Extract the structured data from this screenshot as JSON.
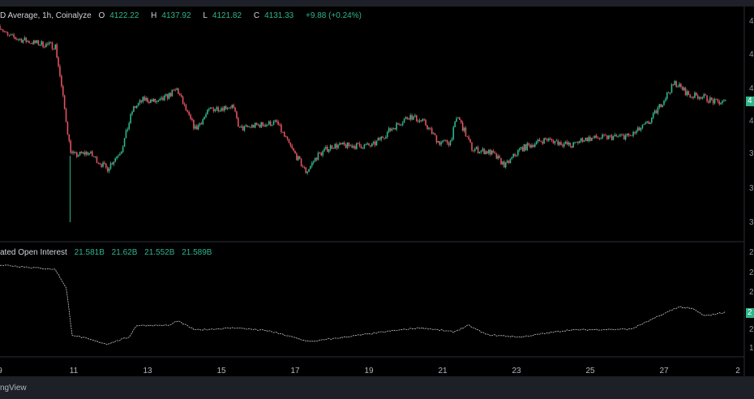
{
  "header": {
    "title": "D Average, 1h, Coinalyze",
    "open_label": "O",
    "open": "4122.22",
    "high_label": "H",
    "high": "4137.92",
    "low_label": "L",
    "low": "4121.82",
    "close_label": "C",
    "close": "4131.33",
    "change": "+9.88 (+0.24%)"
  },
  "oi_header": {
    "title": "ated Open Interest",
    "open": "21.581B",
    "high": "21.62B",
    "low": "21.552B",
    "close": "21.589B"
  },
  "footer": {
    "brand": "ngView"
  },
  "colors": {
    "up": "#2fb58c",
    "down": "#e0525e",
    "background": "#000000",
    "panel": "#1e2027"
  },
  "chart_data": [
    {
      "type": "candlestick",
      "xlabel": "",
      "ylabel": "",
      "x_tick_labels": [
        "9",
        "11",
        "13",
        "15",
        "17",
        "19",
        "21",
        "23",
        "25",
        "27",
        "2"
      ],
      "y_tick_labels": [
        "4",
        "4",
        "4",
        "4",
        "3",
        "3",
        "3"
      ],
      "last_value_badge": "4",
      "grid": false,
      "close_path": {
        "day": [
          9.0,
          9.2,
          9.9,
          10.5,
          10.6,
          10.9,
          11.0,
          11.4,
          11.9,
          12.3,
          12.6,
          12.9,
          13.3,
          13.8,
          14.1,
          14.3,
          14.7,
          15.3,
          15.5,
          15.9,
          16.5,
          16.8,
          17.3,
          17.6,
          18.0,
          19.1,
          19.6,
          20.1,
          20.5,
          20.9,
          21.2,
          21.4,
          21.8,
          22.3,
          22.7,
          23.1,
          23.8,
          24.5,
          24.8,
          26.1,
          26.6,
          27.0,
          27.3,
          27.7,
          28.0,
          28.4,
          28.7
        ],
        "price": [
          4245,
          4230,
          4220,
          4215,
          4180,
          4060,
          4050,
          4055,
          4030,
          4060,
          4120,
          4135,
          4130,
          4150,
          4110,
          4090,
          4120,
          4125,
          4090,
          4095,
          4100,
          4070,
          4025,
          4050,
          4065,
          4065,
          4090,
          4110,
          4100,
          4070,
          4070,
          4110,
          4060,
          4055,
          4035,
          4060,
          4075,
          4065,
          4075,
          4080,
          4100,
          4135,
          4160,
          4140,
          4140,
          4130,
          4131
        ]
      },
      "spike_low": {
        "day": 10.9,
        "price": 3950
      }
    },
    {
      "type": "line",
      "y_tick_labels": [
        "2",
        "2",
        "2",
        "2",
        "2",
        "1"
      ],
      "last_value_badge": "2",
      "series": {
        "day": [
          9.0,
          10.5,
          10.8,
          10.95,
          11.9,
          12.5,
          12.7,
          13.6,
          13.8,
          14.3,
          15.4,
          16.3,
          17.4,
          19.6,
          20.4,
          21.3,
          21.7,
          22.2,
          23.1,
          24.4,
          26.1,
          26.6,
          27.4,
          27.8,
          28.1,
          28.7
        ],
        "oi_billion": [
          22.6,
          22.5,
          22.1,
          21.1,
          20.9,
          21.05,
          21.3,
          21.3,
          21.4,
          21.2,
          21.25,
          21.18,
          20.95,
          21.18,
          21.25,
          21.16,
          21.3,
          21.1,
          21.05,
          21.2,
          21.22,
          21.4,
          21.7,
          21.65,
          21.5,
          21.589
        ]
      }
    }
  ]
}
